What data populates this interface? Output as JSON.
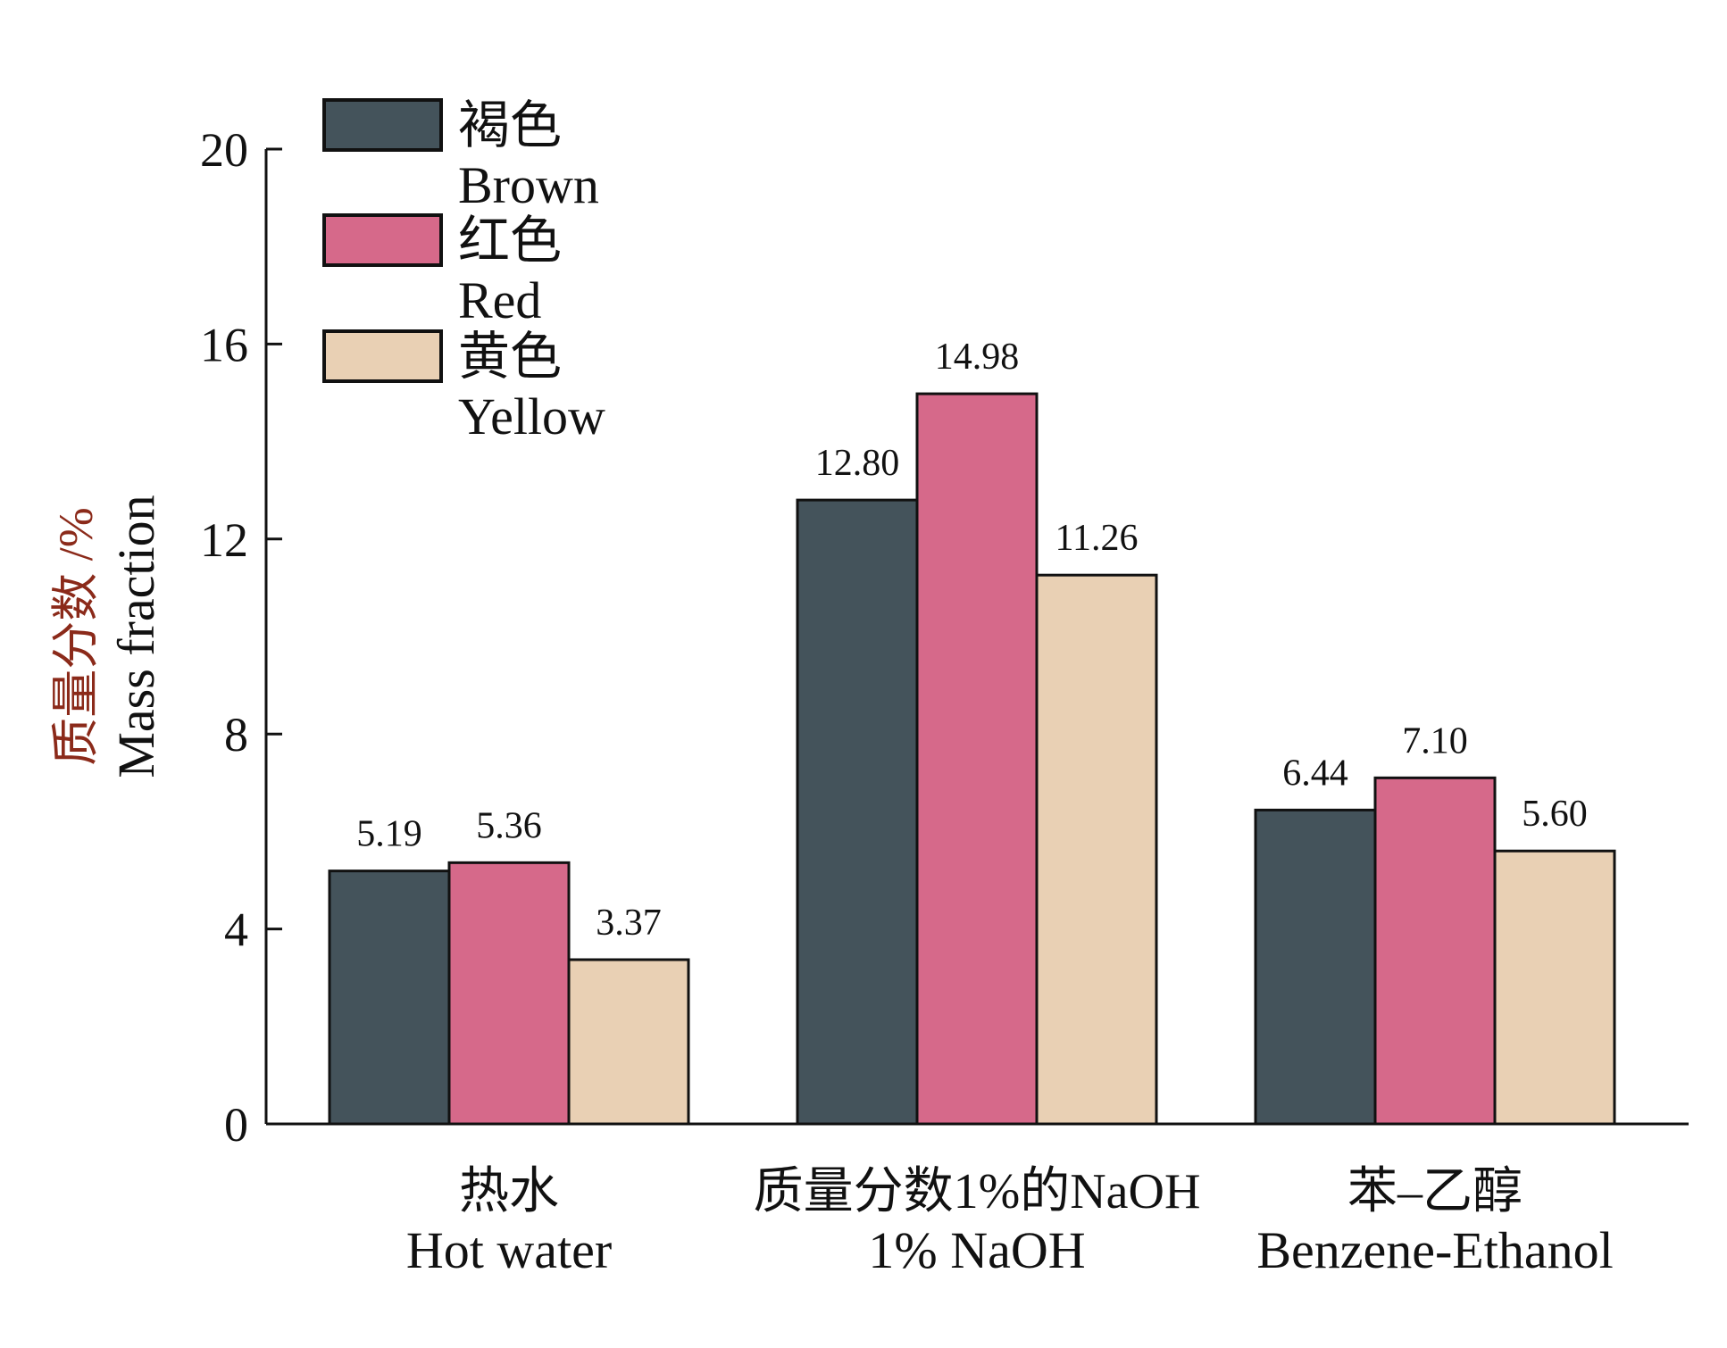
{
  "chart_data": {
    "type": "bar",
    "title": "",
    "ylabel_cn": "质量分数 /%",
    "ylabel_en": "Mass fraction",
    "ylim": [
      0,
      20
    ],
    "yticks": [
      0,
      4,
      8,
      12,
      16,
      20
    ],
    "grid": false,
    "legend_placement": "top-left",
    "categories": [
      {
        "cn": "热水",
        "en": "Hot water"
      },
      {
        "cn": "质量分数1%的NaOH",
        "en": "1% NaOH"
      },
      {
        "cn": "苯–乙醇",
        "en": "Benzene-Ethanol"
      }
    ],
    "series": [
      {
        "name_cn": "褐色",
        "name_en": "Brown",
        "color": "#44535b",
        "values": [
          5.19,
          12.8,
          6.44
        ],
        "labels": [
          "5.19",
          "12.80",
          "6.44"
        ]
      },
      {
        "name_cn": "红色",
        "name_en": "Red",
        "color": "#d6698a",
        "values": [
          5.36,
          14.98,
          7.1
        ],
        "labels": [
          "5.36",
          "14.98",
          "7.10"
        ]
      },
      {
        "name_cn": "黄色",
        "name_en": "Yellow",
        "color": "#e9d0b4",
        "values": [
          3.37,
          11.26,
          5.6
        ],
        "labels": [
          "3.37",
          "11.26",
          "5.60"
        ]
      }
    ],
    "ylabel_color": "#8b2a1a"
  }
}
